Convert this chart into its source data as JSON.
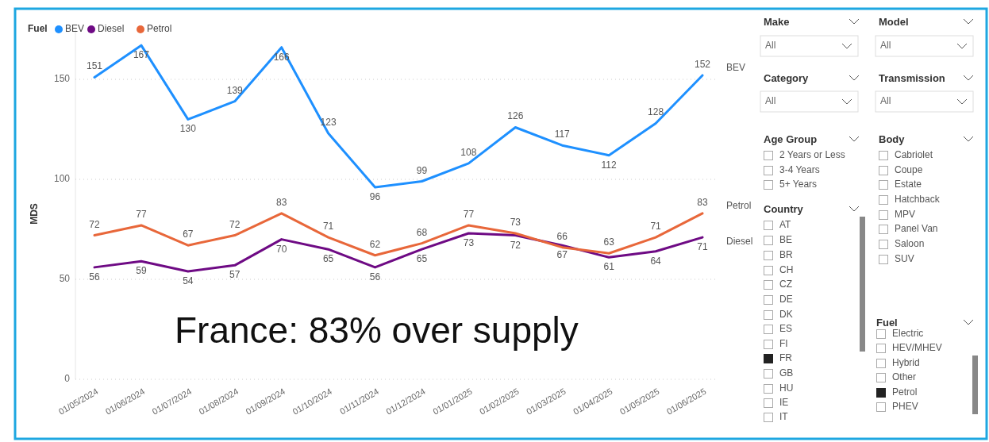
{
  "chart_data": [
    {
      "type": "line",
      "ylabel": "MDS",
      "legend_title": "Fuel",
      "legend": "top left",
      "grid": "y",
      "data_labels": true,
      "categories": [
        "01/05/2024",
        "01/06/2024",
        "01/07/2024",
        "01/08/2024",
        "01/09/2024",
        "01/10/2024",
        "01/11/2024",
        "01/12/2024",
        "01/01/2025",
        "01/02/2025",
        "01/03/2025",
        "01/04/2025",
        "01/05/2025",
        "01/06/2025"
      ],
      "series": [
        {
          "name": "BEV",
          "color": "#1e90ff",
          "values": [
            151,
            167,
            130,
            139,
            166,
            123,
            96,
            99,
            108,
            126,
            117,
            112,
            128,
            152
          ]
        },
        {
          "name": "Diesel",
          "color": "#6e0a84",
          "values": [
            56,
            59,
            54,
            57,
            70,
            65,
            56,
            65,
            73,
            72,
            67,
            61,
            64,
            71
          ]
        },
        {
          "name": "Petrol",
          "color": "#e8673a",
          "values": [
            72,
            77,
            67,
            72,
            83,
            71,
            62,
            68,
            77,
            73,
            66,
            63,
            71,
            83
          ]
        }
      ],
      "ylim": [
        0,
        175
      ],
      "yticks": [
        0,
        50,
        100,
        150
      ],
      "annotations": [
        "France: 83% over supply"
      ]
    },
    {
      "type": "other",
      "annotations": [
        "Make",
        "All",
        "Model",
        "All",
        "Category",
        "All",
        "Transmission",
        "All",
        "Age Group",
        "2 Years or Less",
        "3-4 Years",
        "5+ Years",
        "Body",
        "Cabriolet",
        "Coupe",
        "Estate",
        "Hatchback",
        "MPV",
        "Panel Van",
        "Saloon",
        "SUV",
        "Country",
        "AT",
        "BE",
        "BR",
        "CH",
        "CZ",
        "DE",
        "DK",
        "ES",
        "FI",
        "FR",
        "GB",
        "HU",
        "IE",
        "IT",
        "Fuel",
        "Electric",
        "HEV/MHEV",
        "Hybrid",
        "Other",
        "Petrol",
        "PHEV"
      ]
    }
  ]
}
